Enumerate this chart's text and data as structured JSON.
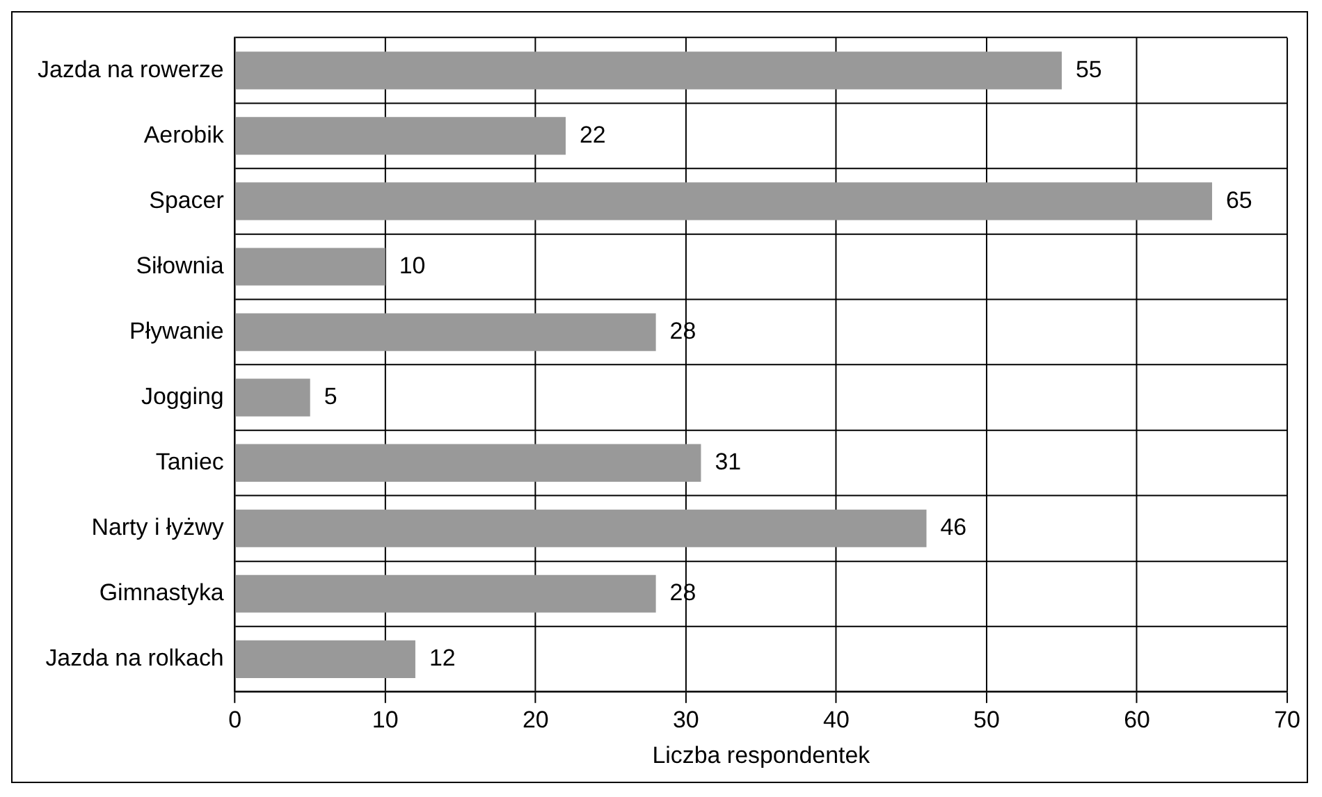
{
  "chart_data": {
    "type": "bar",
    "orientation": "horizontal",
    "xlabel": "Liczba respondentek",
    "categories": [
      "Jazda na rowerze",
      "Aerobik",
      "Spacer",
      "Siłownia",
      "Pływanie",
      "Jogging",
      "Taniec",
      "Narty i łyżwy",
      "Gimnastyka",
      "Jazda na rolkach"
    ],
    "values": [
      55,
      22,
      65,
      10,
      28,
      5,
      31,
      46,
      28,
      12
    ],
    "color": "#999999",
    "xlim": [
      0,
      70
    ],
    "xticks": [
      0,
      10,
      20,
      30,
      40,
      50,
      60,
      70
    ],
    "grid": true,
    "legend": false,
    "data_labels": true
  }
}
